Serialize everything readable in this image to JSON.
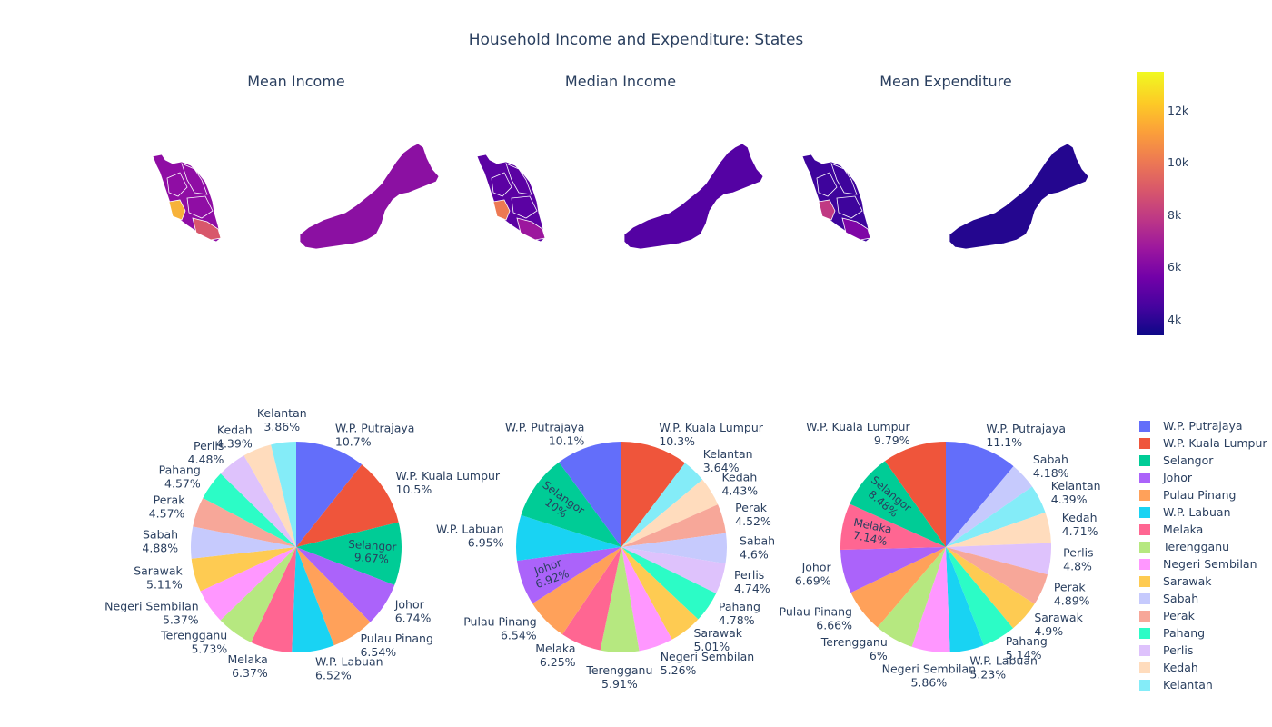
{
  "title": "Household Income and Expenditure: States",
  "subplots": [
    "Mean Income",
    "Median Income",
    "Mean Expenditure"
  ],
  "colorbar": {
    "ticks": [
      "12k",
      "10k",
      "8k",
      "6k",
      "4k"
    ],
    "min": 3400,
    "max": 13500,
    "tick_values": [
      12000,
      10000,
      8000,
      6000,
      4000
    ],
    "colorscale": [
      "#0d0887",
      "#46039f",
      "#7201a8",
      "#9c179e",
      "#bd3786",
      "#d8576b",
      "#ed7953",
      "#fb9f3a",
      "#fdca26",
      "#f0f921"
    ]
  },
  "legend": [
    {
      "name": "W.P. Putrajaya",
      "color": "#636efa"
    },
    {
      "name": "W.P. Kuala Lumpur",
      "color": "#EF553B"
    },
    {
      "name": "Selangor",
      "color": "#00cc96"
    },
    {
      "name": "Johor",
      "color": "#ab63fa"
    },
    {
      "name": "Pulau Pinang",
      "color": "#FFA15A"
    },
    {
      "name": "W.P. Labuan",
      "color": "#19d3f3"
    },
    {
      "name": "Melaka",
      "color": "#FF6692"
    },
    {
      "name": "Terengganu",
      "color": "#B6E880"
    },
    {
      "name": "Negeri Sembilan",
      "color": "#FF97FF"
    },
    {
      "name": "Sarawak",
      "color": "#FECB52"
    },
    {
      "name": "Sabah",
      "color": "#c6cafd"
    },
    {
      "name": "Perak",
      "color": "#f7a799"
    },
    {
      "name": "Pahang",
      "color": "#2cfcc6"
    },
    {
      "name": "Perlis",
      "color": "#dec2fc"
    },
    {
      "name": "Kedah",
      "color": "#ffdcbd"
    },
    {
      "name": "Kelantan",
      "color": "#84ecf8"
    }
  ],
  "chart_data": [
    {
      "type": "pie",
      "title": "Mean Income",
      "labels": [
        "W.P. Putrajaya",
        "W.P. Kuala Lumpur",
        "Selangor",
        "Johor",
        "Pulau Pinang",
        "W.P. Labuan",
        "Melaka",
        "Terengganu",
        "Negeri Sembilan",
        "Sarawak",
        "Sabah",
        "Perak",
        "Pahang",
        "Perlis",
        "Kedah",
        "Kelantan"
      ],
      "values": [
        10.7,
        10.5,
        9.67,
        6.74,
        6.54,
        6.52,
        6.37,
        5.73,
        5.37,
        5.11,
        4.88,
        4.57,
        4.57,
        4.48,
        4.39,
        3.86
      ],
      "value_labels": [
        "10.7%",
        "10.5%",
        "9.67%",
        "6.74%",
        "6.54%",
        "6.52%",
        "6.37%",
        "5.73%",
        "5.37%",
        "5.11%",
        "4.88%",
        "4.57%",
        "4.57%",
        "4.48%",
        "4.39%",
        "3.86%"
      ]
    },
    {
      "type": "pie",
      "title": "Median Income",
      "labels": [
        "W.P. Kuala Lumpur",
        "Kelantan",
        "Kedah",
        "Perak",
        "Sabah",
        "Perlis",
        "Pahang",
        "Sarawak",
        "Negeri Sembilan",
        "Terengganu",
        "Melaka",
        "Pulau Pinang",
        "Johor",
        "W.P. Labuan",
        "Selangor",
        "W.P. Putrajaya"
      ],
      "values": [
        10.3,
        3.64,
        4.43,
        4.52,
        4.6,
        4.74,
        4.78,
        5.01,
        5.26,
        5.91,
        6.25,
        6.54,
        6.92,
        6.95,
        10,
        10.1
      ],
      "value_labels": [
        "10.3%",
        "3.64%",
        "4.43%",
        "4.52%",
        "4.6%",
        "4.74%",
        "4.78%",
        "5.01%",
        "5.26%",
        "5.91%",
        "6.25%",
        "6.54%",
        "6.92%",
        "6.95%",
        "10%",
        "10.1%"
      ]
    },
    {
      "type": "pie",
      "title": "Mean Expenditure",
      "labels": [
        "W.P. Putrajaya",
        "Sabah",
        "Kelantan",
        "Kedah",
        "Perlis",
        "Perak",
        "Sarawak",
        "Pahang",
        "W.P. Labuan",
        "Negeri Sembilan",
        "Terengganu",
        "Pulau Pinang",
        "Johor",
        "Melaka",
        "Selangor",
        "W.P. Kuala Lumpur"
      ],
      "values": [
        11.1,
        4.18,
        4.39,
        4.71,
        4.8,
        4.89,
        4.9,
        5.14,
        5.23,
        5.86,
        6,
        6.66,
        6.69,
        7.14,
        8.48,
        9.79
      ],
      "value_labels": [
        "11.1%",
        "4.18%",
        "4.39%",
        "4.71%",
        "4.8%",
        "4.89%",
        "4.9%",
        "5.14%",
        "5.23%",
        "5.86%",
        "6%",
        "6.66%",
        "6.69%",
        "7.14%",
        "8.48%",
        "9.79%"
      ]
    }
  ]
}
